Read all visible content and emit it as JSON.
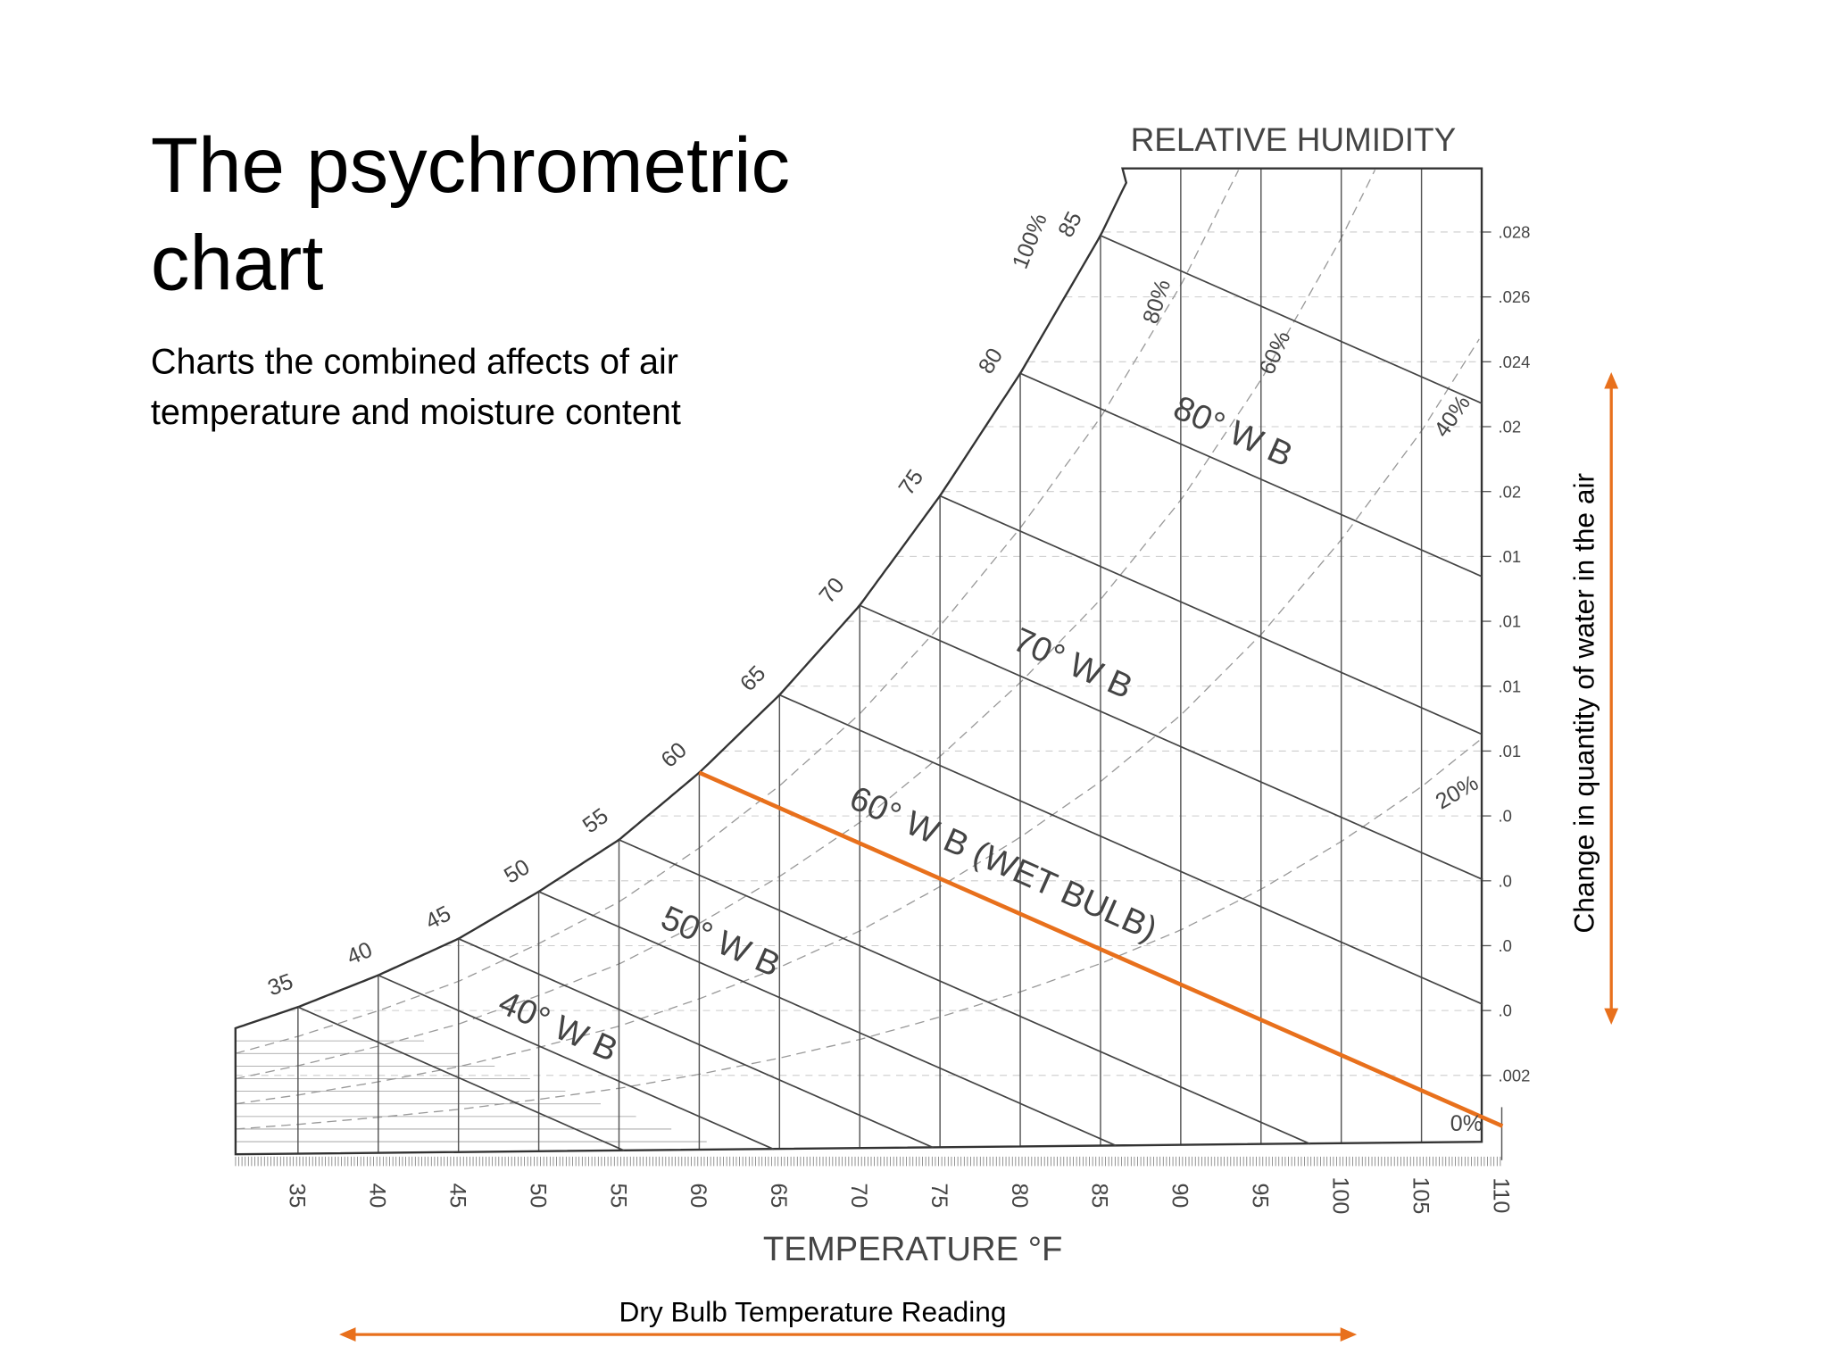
{
  "slide": {
    "title": [
      "The psychrometric",
      "chart"
    ],
    "subtitle": [
      "Charts the combined affects of air",
      "temperature and moisture content"
    ]
  },
  "diagram": {
    "top_label": "RELATIVE HUMIDITY",
    "rh_labels": [
      "100%",
      "80%",
      "60%",
      "40%",
      "20%",
      "0%"
    ],
    "saturation_temps": [
      35,
      40,
      45,
      50,
      55,
      60,
      65,
      70,
      75,
      80,
      85
    ],
    "wet_bulb_labels": [
      "80° W B",
      "70° W B",
      "60° W B (WET BULB)",
      "50° W B",
      "40° W B"
    ],
    "x_ticks": [
      35,
      40,
      45,
      50,
      55,
      60,
      65,
      70,
      75,
      80,
      85,
      90,
      95,
      100,
      105,
      110
    ],
    "x_axis_title": "TEMPERATURE °F",
    "moisture_ticks": [
      ".028",
      ".026",
      ".024",
      ".02",
      ".02",
      ".01",
      ".01",
      ".01",
      ".01",
      ".0",
      ".0",
      ".0",
      ".0",
      ".002"
    ],
    "accent_color": "#e8701c"
  },
  "annotations": {
    "horizontal": "Dry Bulb Temperature Reading",
    "vertical": "Change in quantity of water in the air"
  }
}
